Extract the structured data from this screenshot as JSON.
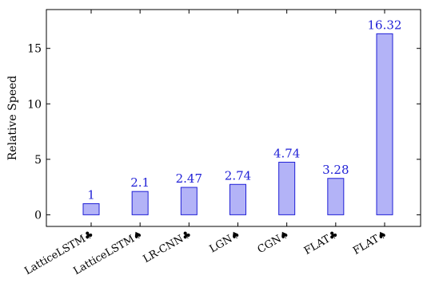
{
  "chart_data": {
    "type": "bar",
    "title": "",
    "xlabel": "",
    "ylabel": "Relative Speed",
    "categories": [
      "LatticeLSTM♣",
      "LatticeLSTM♠",
      "LR-CNN♣",
      "LGN♠",
      "CGN♠",
      "FLAT♣",
      "FLAT♠"
    ],
    "values": [
      1,
      2.1,
      2.47,
      2.74,
      4.74,
      3.28,
      16.32
    ],
    "value_labels": [
      "1",
      "2.1",
      "2.47",
      "2.74",
      "4.74",
      "3.28",
      "16.32"
    ],
    "ylim": [
      -1.05,
      18.5
    ],
    "yticks": [
      0,
      5,
      10,
      15
    ],
    "ytick_labels": [
      "0",
      "5",
      "10",
      "15"
    ],
    "grid": false,
    "colors": {
      "bar_fill": "#b3b3f7",
      "bar_stroke": "#1f1fd6",
      "value_label": "#1f1fd6"
    }
  }
}
